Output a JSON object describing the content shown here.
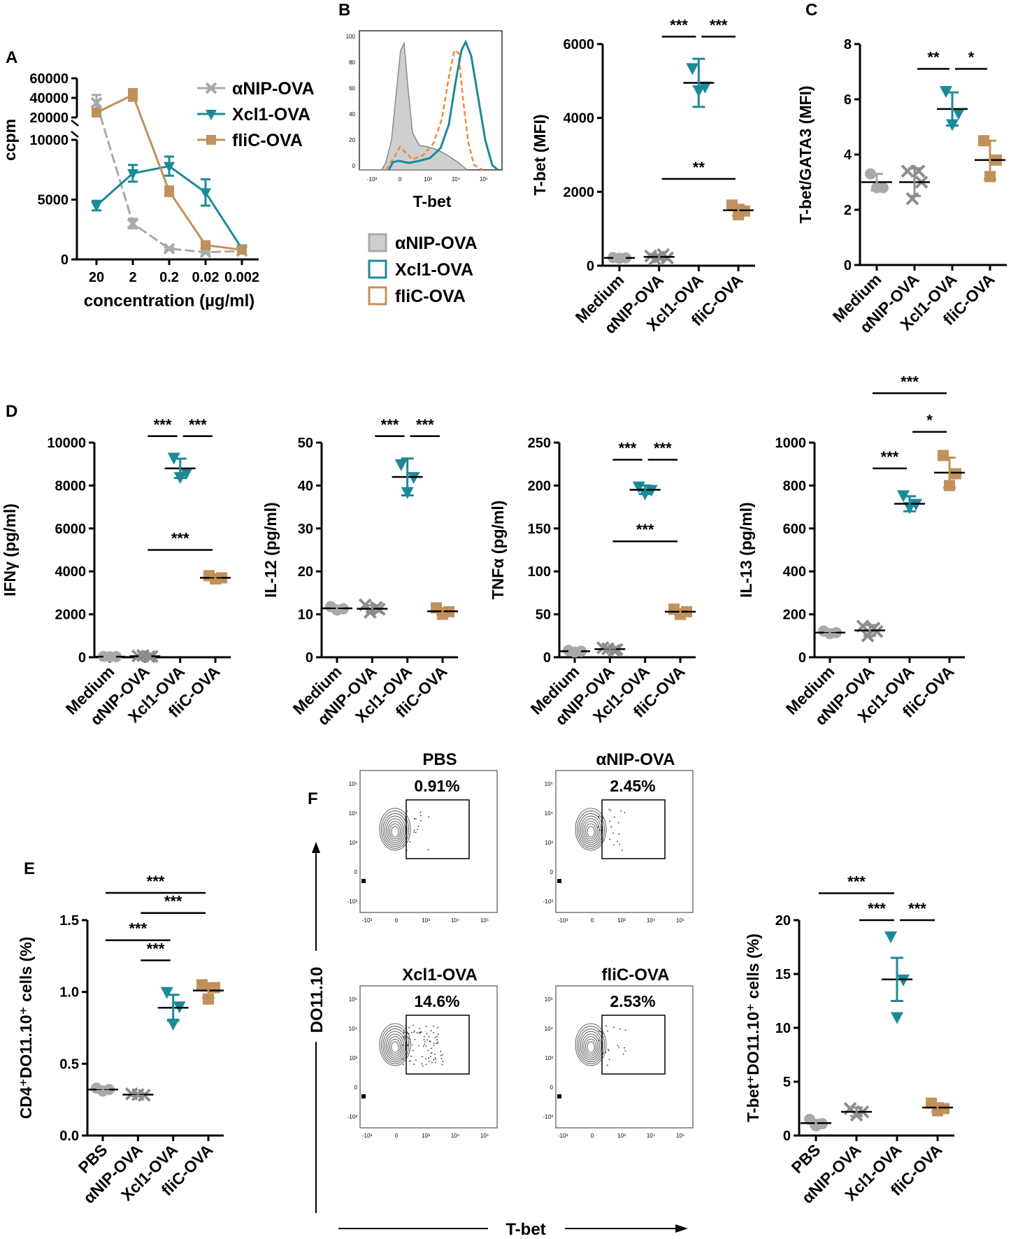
{
  "colors": {
    "grey": "#a9a9ab",
    "teal": "#1b8a97",
    "gold": "#c0915a",
    "greyDark": "#8d8d90",
    "orangeDash": "#f08a3c",
    "histFill": "#cfcfd1"
  },
  "panel_labels": {
    "A": "A",
    "B": "B",
    "C": "C",
    "D": "D",
    "E": "E",
    "F": "F"
  },
  "common": {
    "groups4": [
      "Medium",
      "αNIP-OVA",
      "Xcl1-OVA",
      "fliC-OVA"
    ],
    "groups4_pbs": [
      "PBS",
      "αNIP-OVA",
      "Xcl1-OVA",
      "fliC-OVA"
    ]
  },
  "panelB_hist": {
    "xlabel": "T-bet",
    "y_ticks": [
      "100",
      "80",
      "60",
      "40",
      "20",
      "0"
    ],
    "x_ticks": [
      "-10³",
      "0",
      "10³",
      "10⁴",
      "10⁵"
    ],
    "legend": [
      {
        "label": "αNIP-OVA",
        "color": "grey"
      },
      {
        "label": "Xcl1-OVA",
        "color": "teal"
      },
      {
        "label": "fliC-OVA",
        "color": "gold"
      }
    ]
  },
  "panelF": {
    "ylabel": "DO11.10",
    "xlabel": "T-bet",
    "plots": [
      {
        "title": "PBS",
        "percent": "0.91%",
        "events": 18
      },
      {
        "title": "αNIP-OVA",
        "percent": "2.45%",
        "events": 22
      },
      {
        "title": "Xcl1-OVA",
        "percent": "14.6%",
        "events": 90
      },
      {
        "title": "fliC-OVA",
        "percent": "2.53%",
        "events": 22
      }
    ],
    "y_ticks": [
      "10⁵",
      "10⁴",
      "10³",
      "0",
      "-10³"
    ],
    "x_ticks": [
      "-10³",
      "0",
      "10³",
      "10⁴",
      "10⁵"
    ]
  },
  "chart_data": [
    {
      "id": "A",
      "type": "line",
      "ylabel": "ccpm",
      "xlabel": "concentration (µg/ml)",
      "categories": [
        "20",
        "2",
        "0.2",
        "0.02",
        "0.002"
      ],
      "y_axis_broken": true,
      "y_ticks_lower": [
        0,
        5000,
        10000
      ],
      "y_ticks_upper": [
        20000,
        40000,
        60000
      ],
      "series": [
        {
          "name": "αNIP-OVA",
          "color": "grey",
          "marker": "x",
          "values": [
            35000,
            3000,
            900,
            600,
            700
          ],
          "errors": [
            8000,
            400,
            100,
            100,
            100
          ]
        },
        {
          "name": "Xcl1-OVA",
          "color": "teal",
          "marker": "tri",
          "values": [
            4500,
            7200,
            7800,
            5600,
            900
          ],
          "errors": [
            400,
            700,
            800,
            1100,
            150
          ]
        },
        {
          "name": "fliC-OVA",
          "color": "gold",
          "marker": "sq",
          "values": [
            25000,
            43000,
            5700,
            1200,
            800
          ],
          "errors": [
            2500,
            6000,
            400,
            150,
            100
          ]
        }
      ]
    },
    {
      "id": "B",
      "type": "scatter",
      "ylabel": "T-bet (MFI)",
      "ylim": [
        0,
        6000
      ],
      "y_ticks": [
        0,
        2000,
        4000,
        6000
      ],
      "categories": [
        "Medium",
        "αNIP-OVA",
        "Xcl1-OVA",
        "fliC-OVA"
      ],
      "groups": [
        {
          "color": "grey",
          "marker": "circle",
          "points": [
            220,
            210,
            200
          ],
          "mean": 210,
          "sd": 15
        },
        {
          "color": "greyDark",
          "marker": "x",
          "points": [
            260,
            180,
            230,
            300,
            210
          ],
          "mean": 240,
          "sd": 50
        },
        {
          "color": "teal",
          "marker": "tri",
          "points": [
            5350,
            4850,
            4750
          ],
          "mean": 4950,
          "sd": 650
        },
        {
          "color": "gold",
          "marker": "sq",
          "points": [
            1640,
            1480,
            1380
          ],
          "mean": 1500,
          "sd": 150
        }
      ],
      "significance": [
        {
          "from": 1,
          "to": 2,
          "label": "***",
          "y": 6200
        },
        {
          "from": 2,
          "to": 3,
          "label": "***",
          "y": 6200
        },
        {
          "from": 1,
          "to": 3,
          "label": "**",
          "y": 2350
        }
      ]
    },
    {
      "id": "C",
      "type": "scatter",
      "ylabel": "T-bet/GATA3 (MFI)",
      "ylim": [
        0,
        8
      ],
      "y_ticks": [
        0,
        2,
        4,
        6,
        8
      ],
      "categories": [
        "Medium",
        "αNIP-OVA",
        "Xcl1-OVA",
        "fliC-OVA"
      ],
      "groups": [
        {
          "color": "grey",
          "marker": "circle",
          "points": [
            3.3,
            2.8,
            2.8
          ],
          "mean": 3.0,
          "sd": 0.3
        },
        {
          "color": "greyDark",
          "marker": "x",
          "points": [
            3.4,
            3.0,
            2.4,
            3.4
          ],
          "mean": 3.0,
          "sd": 0.5
        },
        {
          "color": "teal",
          "marker": "tri",
          "points": [
            6.3,
            5.5,
            5.1
          ],
          "mean": 5.65,
          "sd": 0.6
        },
        {
          "color": "gold",
          "marker": "sq",
          "points": [
            4.5,
            3.8,
            3.2
          ],
          "mean": 3.8,
          "sd": 0.7
        }
      ],
      "significance": [
        {
          "from": 1,
          "to": 2,
          "label": "**",
          "y": 7.1
        },
        {
          "from": 2,
          "to": 3,
          "label": "*",
          "y": 7.1
        }
      ]
    },
    {
      "id": "D1",
      "type": "scatter",
      "ylabel": "IFNγ (pg/ml)",
      "ylim": [
        0,
        10000
      ],
      "y_ticks": [
        0,
        2000,
        4000,
        6000,
        8000,
        10000
      ],
      "categories": [
        "Medium",
        "αNIP-OVA",
        "Xcl1-OVA",
        "fliC-OVA"
      ],
      "groups": [
        {
          "color": "grey",
          "marker": "circle",
          "points": [
            40,
            30,
            20
          ],
          "mean": 30,
          "sd": 10
        },
        {
          "color": "greyDark",
          "marker": "x",
          "points": [
            60,
            40,
            80,
            30
          ],
          "mean": 50,
          "sd": 20
        },
        {
          "color": "teal",
          "marker": "tri",
          "points": [
            9300,
            8600,
            8400
          ],
          "mean": 8800,
          "sd": 450
        },
        {
          "color": "gold",
          "marker": "sq",
          "points": [
            3800,
            3700,
            3650
          ],
          "mean": 3700,
          "sd": 80
        }
      ],
      "significance": [
        {
          "from": 1,
          "to": 2,
          "label": "***",
          "y": 10300
        },
        {
          "from": 2,
          "to": 3,
          "label": "***",
          "y": 10300
        },
        {
          "from": 1,
          "to": 3,
          "label": "***",
          "y": 5000
        }
      ]
    },
    {
      "id": "D2",
      "type": "scatter",
      "ylabel": "IL-12 (pg/ml)",
      "ylim": [
        0,
        50
      ],
      "y_ticks": [
        0,
        10,
        20,
        30,
        40,
        50
      ],
      "categories": [
        "Medium",
        "αNIP-OVA",
        "Xcl1-OVA",
        "fliC-OVA"
      ],
      "groups": [
        {
          "color": "grey",
          "marker": "circle",
          "points": [
            11.8,
            11.3,
            11.0
          ],
          "mean": 11.4,
          "sd": 0.4
        },
        {
          "color": "greyDark",
          "marker": "x",
          "points": [
            12.2,
            11.2,
            10.5,
            11.6
          ],
          "mean": 11.3,
          "sd": 0.8
        },
        {
          "color": "teal",
          "marker": "tri",
          "points": [
            45.0,
            42.0,
            38.5
          ],
          "mean": 42.0,
          "sd": 4.3
        },
        {
          "color": "gold",
          "marker": "sq",
          "points": [
            11.5,
            10.6,
            10.0
          ],
          "mean": 10.7,
          "sd": 0.7
        }
      ],
      "significance": [
        {
          "from": 1,
          "to": 2,
          "label": "***",
          "y": 51.5
        },
        {
          "from": 2,
          "to": 3,
          "label": "***",
          "y": 51.5
        }
      ]
    },
    {
      "id": "D3",
      "type": "scatter",
      "ylabel": "TNFα (pg/ml)",
      "ylim": [
        0,
        250
      ],
      "y_ticks": [
        0,
        50,
        100,
        150,
        200,
        250
      ],
      "categories": [
        "Medium",
        "αNIP-OVA",
        "Xcl1-OVA",
        "fliC-OVA"
      ],
      "groups": [
        {
          "color": "grey",
          "marker": "circle",
          "points": [
            8,
            7,
            6
          ],
          "mean": 7,
          "sd": 1
        },
        {
          "color": "greyDark",
          "marker": "x",
          "points": [
            11,
            9,
            10,
            8
          ],
          "mean": 9.5,
          "sd": 1.5
        },
        {
          "color": "teal",
          "marker": "tri",
          "points": [
            199,
            195,
            191
          ],
          "mean": 195,
          "sd": 5
        },
        {
          "color": "gold",
          "marker": "sq",
          "points": [
            56,
            53,
            50
          ],
          "mean": 53,
          "sd": 3
        }
      ],
      "significance": [
        {
          "from": 1,
          "to": 2,
          "label": "***",
          "y": 230
        },
        {
          "from": 2,
          "to": 3,
          "label": "***",
          "y": 230
        },
        {
          "from": 1,
          "to": 3,
          "label": "***",
          "y": 135
        }
      ]
    },
    {
      "id": "D4",
      "type": "scatter",
      "ylabel": "IL-13 (pg/ml)",
      "ylim": [
        0,
        1000
      ],
      "y_ticks": [
        0,
        200,
        400,
        600,
        800,
        1000
      ],
      "categories": [
        "Medium",
        "αNIP-OVA",
        "Xcl1-OVA",
        "fliC-OVA"
      ],
      "groups": [
        {
          "color": "grey",
          "marker": "circle",
          "points": [
            122,
            115,
            110
          ],
          "mean": 115,
          "sd": 7
        },
        {
          "color": "greyDark",
          "marker": "x",
          "points": [
            145,
            120,
            100,
            135
          ],
          "mean": 125,
          "sd": 25
        },
        {
          "color": "teal",
          "marker": "tri",
          "points": [
            755,
            715,
            700
          ],
          "mean": 715,
          "sd": 35
        },
        {
          "color": "gold",
          "marker": "sq",
          "points": [
            940,
            855,
            800
          ],
          "mean": 860,
          "sd": 70
        }
      ],
      "significance": [
        {
          "from": 1,
          "to": 2,
          "label": "***",
          "y": 880
        },
        {
          "from": 2,
          "to": 3,
          "label": "*",
          "y": 1050
        },
        {
          "from": 1,
          "to": 3,
          "label": "***",
          "y": 1230
        }
      ]
    },
    {
      "id": "E",
      "type": "scatter",
      "ylabel": "CD4⁺DO11.10⁺ cells (%)",
      "ylim": [
        0,
        1.5
      ],
      "y_ticks": [
        0.0,
        0.5,
        1.0,
        1.5
      ],
      "y_tick_labels": [
        "0.0",
        "0.5",
        "1.0",
        "1.5"
      ],
      "categories": [
        "PBS",
        "αNIP-OVA",
        "Xcl1-OVA",
        "fliC-OVA"
      ],
      "groups": [
        {
          "color": "grey",
          "marker": "circle",
          "points": [
            0.33,
            0.32,
            0.31
          ],
          "mean": 0.32,
          "sd": 0.01
        },
        {
          "color": "greyDark",
          "marker": "x",
          "points": [
            0.29,
            0.28,
            0.285
          ],
          "mean": 0.285,
          "sd": 0.01
        },
        {
          "color": "teal",
          "marker": "tri",
          "points": [
            1.0,
            0.9,
            0.78
          ],
          "mean": 0.89,
          "sd": 0.09
        },
        {
          "color": "gold",
          "marker": "sq",
          "points": [
            1.05,
            1.03,
            0.95
          ],
          "mean": 1.01,
          "sd": 0.05
        }
      ],
      "significance": [
        {
          "from": 1,
          "to": 2,
          "label": "***",
          "y": 1.22
        },
        {
          "from": 0,
          "to": 2,
          "label": "***",
          "y": 1.36
        },
        {
          "from": 1,
          "to": 3,
          "label": "***",
          "y": 1.55
        },
        {
          "from": 0,
          "to": 3,
          "label": "***",
          "y": 1.69
        }
      ]
    },
    {
      "id": "F2",
      "type": "scatter",
      "ylabel": "T-bet⁺DO11.10⁺ cells (%)",
      "ylim": [
        0,
        20
      ],
      "y_ticks": [
        0,
        5,
        10,
        15,
        20
      ],
      "categories": [
        "PBS",
        "αNIP-OVA",
        "Xcl1-OVA",
        "fliC-OVA"
      ],
      "groups": [
        {
          "color": "grey",
          "marker": "circle",
          "points": [
            1.5,
            1.1,
            0.9
          ],
          "mean": 1.15,
          "sd": 0.3
        },
        {
          "color": "greyDark",
          "marker": "x",
          "points": [
            2.5,
            2.2,
            1.9
          ],
          "mean": 2.2,
          "sd": 0.4
        },
        {
          "color": "teal",
          "marker": "tri",
          "points": [
            18.5,
            14.5,
            11.0
          ],
          "mean": 14.5,
          "sd": 2.0
        },
        {
          "color": "gold",
          "marker": "sq",
          "points": [
            3.0,
            2.5,
            2.3
          ],
          "mean": 2.6,
          "sd": 0.4
        }
      ],
      "significance": [
        {
          "from": 2,
          "to": 3,
          "label": "***",
          "y": 20.0
        },
        {
          "from": 1,
          "to": 2,
          "label": "***",
          "y": 20.0
        },
        {
          "from": 0,
          "to": 2,
          "label": "***",
          "y": 22.5
        }
      ]
    }
  ]
}
